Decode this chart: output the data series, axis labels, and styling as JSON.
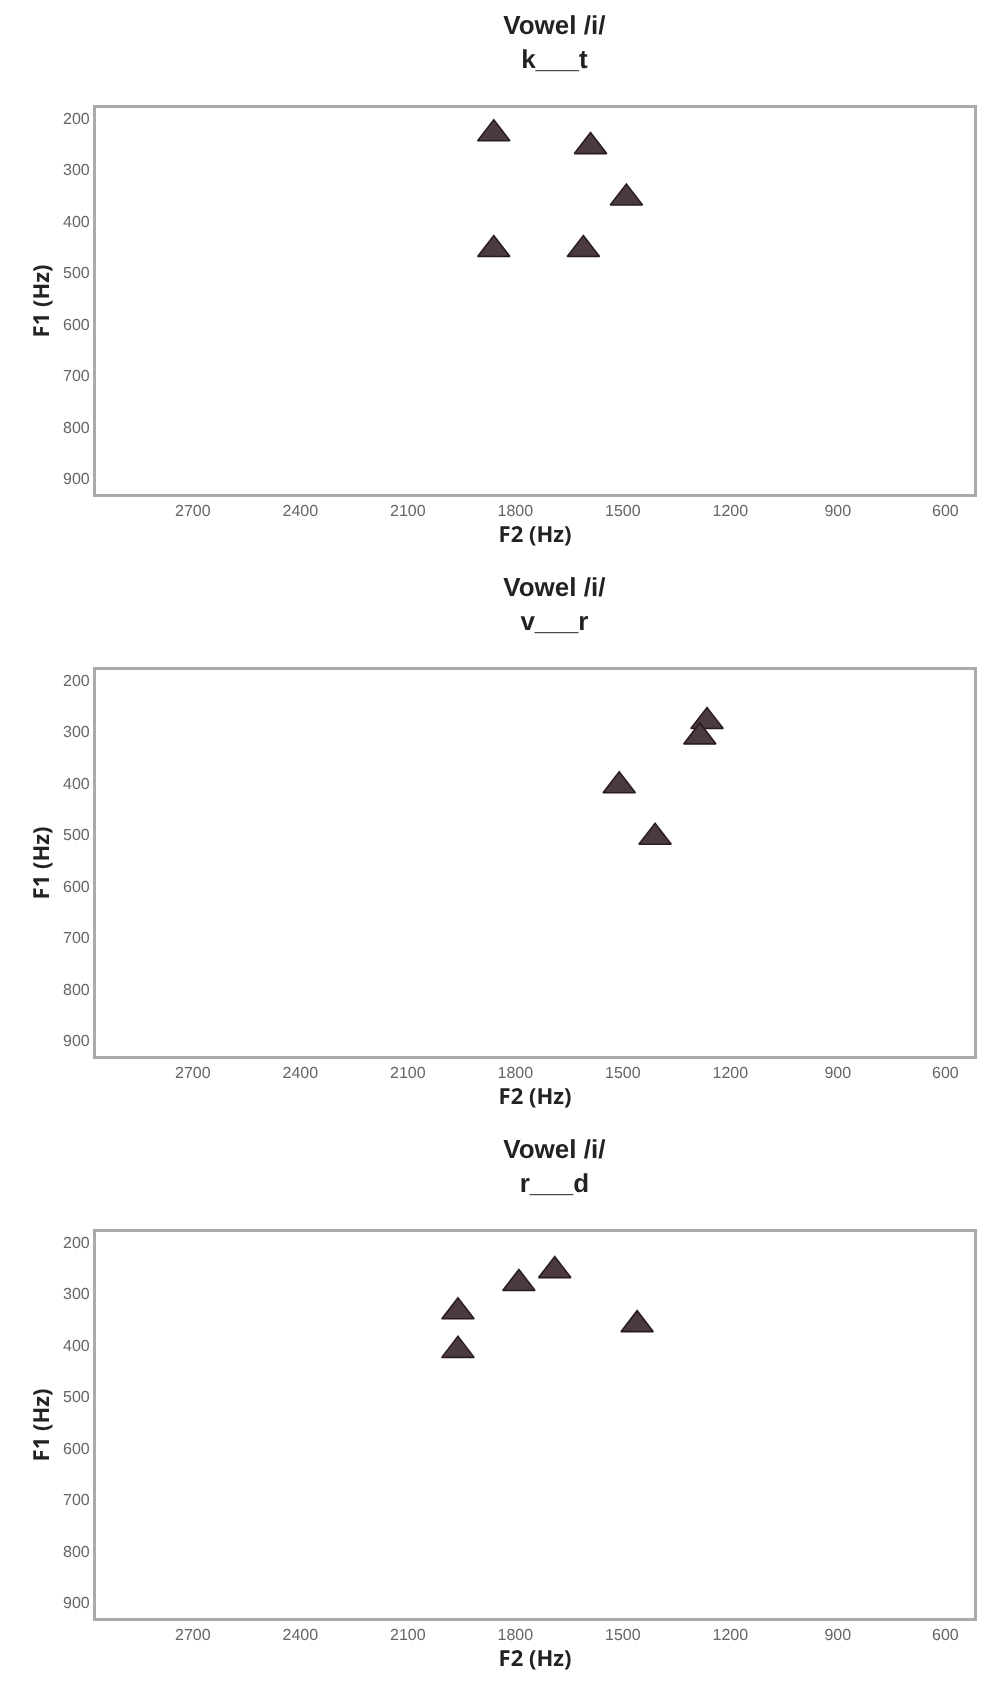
{
  "chart_data": [
    {
      "type": "scatter",
      "title": "Vowel /i/",
      "subtitle": "k___t",
      "xlabel": "F2 (Hz)",
      "ylabel": "F1 (Hz)",
      "x": [
        1860,
        1590,
        1490,
        1860,
        1610
      ],
      "series": [
        {
          "color": "#4b3a3f",
          "values": [
            230,
            255,
            355,
            455,
            455
          ]
        }
      ],
      "xlim": [
        2970,
        520
      ],
      "xticks": [
        2700,
        2400,
        2100,
        1800,
        1500,
        1200,
        900,
        600
      ],
      "ylim": [
        930,
        180
      ],
      "yticks": [
        200,
        300,
        400,
        500,
        600,
        700,
        800,
        900
      ],
      "marker": "triangle",
      "grid": false
    },
    {
      "type": "scatter",
      "title": "Vowel /i/",
      "subtitle": "v___r",
      "xlabel": "F2 (Hz)",
      "ylabel": "F1 (Hz)",
      "x": [
        1265,
        1285,
        1510,
        1410
      ],
      "series": [
        {
          "color": "#4b3a3f",
          "values": [
            280,
            310,
            405,
            505
          ]
        }
      ],
      "xlim": [
        2970,
        520
      ],
      "xticks": [
        2700,
        2400,
        2100,
        1800,
        1500,
        1200,
        900,
        600
      ],
      "ylim": [
        930,
        180
      ],
      "yticks": [
        200,
        300,
        400,
        500,
        600,
        700,
        800,
        900
      ],
      "marker": "triangle",
      "grid": false
    },
    {
      "type": "scatter",
      "title": "Vowel /i/",
      "subtitle": "r___d",
      "xlabel": "F2 (Hz)",
      "ylabel": "F1 (Hz)",
      "x": [
        1960,
        1790,
        1690,
        1460,
        1960
      ],
      "series": [
        {
          "color": "#4b3a3f",
          "values": [
            335,
            280,
            255,
            360,
            410
          ]
        }
      ],
      "xlim": [
        2970,
        520
      ],
      "xticks": [
        2700,
        2400,
        2100,
        1800,
        1500,
        1200,
        900,
        600
      ],
      "ylim": [
        930,
        180
      ],
      "yticks": [
        200,
        300,
        400,
        500,
        600,
        700,
        800,
        900
      ],
      "marker": "triangle",
      "grid": false
    }
  ]
}
